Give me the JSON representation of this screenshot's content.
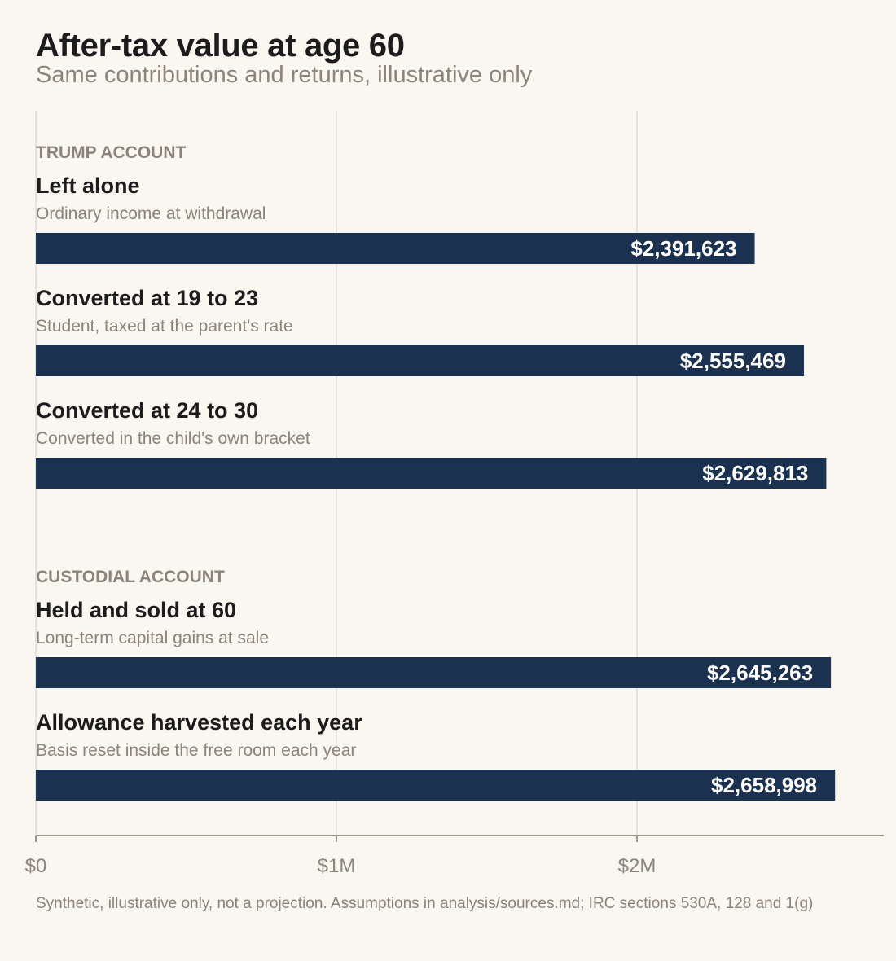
{
  "chart_data": {
    "type": "bar",
    "orientation": "horizontal",
    "title": "After-tax value at age 60",
    "subtitle": "Same contributions and returns, illustrative only",
    "xlim": [
      0,
      2820000
    ],
    "x_ticks": [
      {
        "value": 0,
        "label": "$0"
      },
      {
        "value": 1000000,
        "label": "$1M"
      },
      {
        "value": 2000000,
        "label": "$2M"
      }
    ],
    "grid": true,
    "bar_color": "#1b3150",
    "groups": [
      {
        "label": "TRUMP ACCOUNT",
        "rows": [
          {
            "name": "Left alone",
            "note": "Ordinary income at withdrawal",
            "value": 2391623,
            "value_label": "$2,391,623"
          },
          {
            "name": "Converted at 19 to 23",
            "note": "Student, taxed at the parent's rate",
            "value": 2555469,
            "value_label": "$2,555,469"
          },
          {
            "name": "Converted at 24 to 30",
            "note": "Converted in the child's own bracket",
            "value": 2629813,
            "value_label": "$2,629,813"
          }
        ]
      },
      {
        "label": "CUSTODIAL ACCOUNT",
        "rows": [
          {
            "name": "Held and sold at 60",
            "note": "Long-term capital gains at sale",
            "value": 2645263,
            "value_label": "$2,645,263"
          },
          {
            "name": "Allowance harvested each year",
            "note": "Basis reset inside the free room each year",
            "value": 2658998,
            "value_label": "$2,658,998"
          }
        ]
      }
    ]
  },
  "footnote": "Synthetic, illustrative only, not a projection. Assumptions in analysis/sources.md; IRC sections 530A, 128 and 1(g)"
}
